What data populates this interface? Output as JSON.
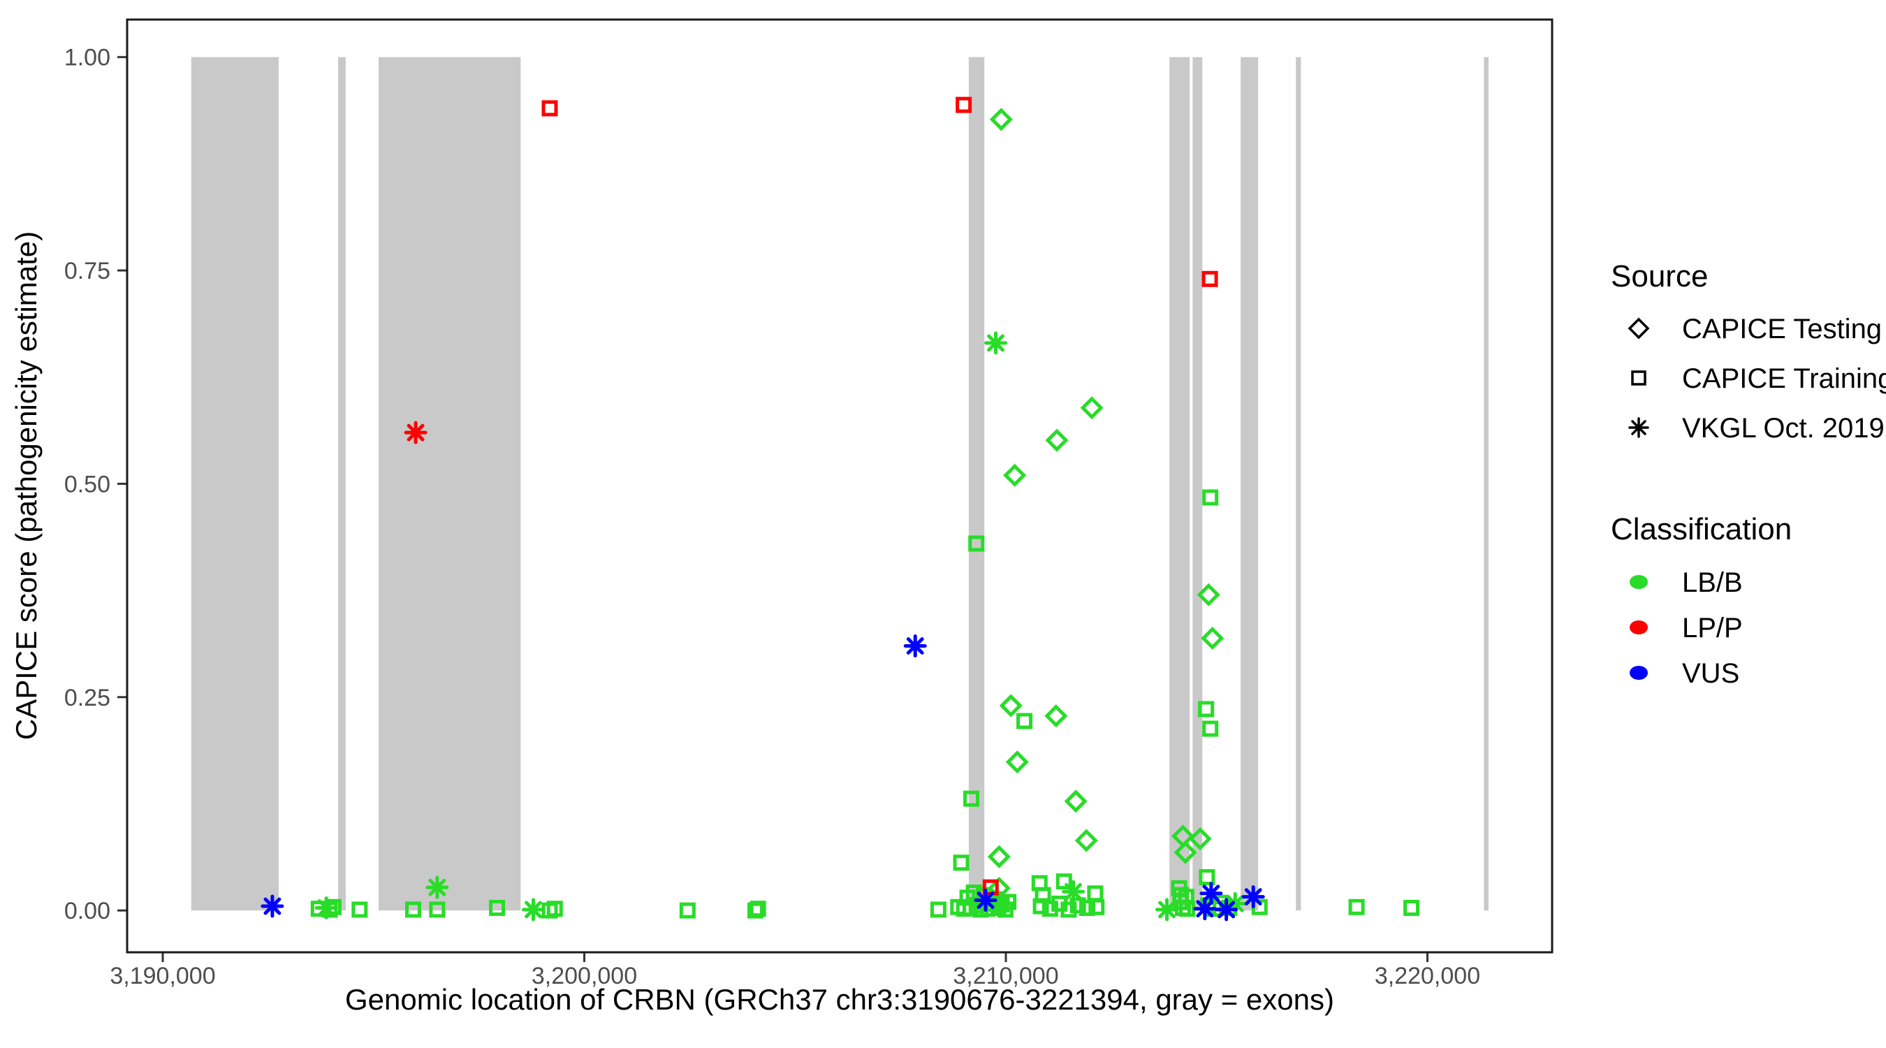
{
  "figure": {
    "x_axis_title": "Genomic location of CRBN (GRCh37 chr3:3190676-3221394, gray = exons)",
    "y_axis_title": "CAPICE score (pathogenicity estimate)"
  },
  "legend": {
    "source": {
      "title": "Source",
      "items": [
        {
          "label": "CAPICE Testing",
          "symbol": "diamond-icon"
        },
        {
          "label": "CAPICE Training",
          "symbol": "square-icon"
        },
        {
          "label": "VKGL Oct. 2019",
          "symbol": "asterisk-icon"
        }
      ]
    },
    "classification": {
      "title": "Classification",
      "items": [
        {
          "label": "LB/B",
          "color": "#28DC28"
        },
        {
          "label": "LP/P",
          "color": "#FF0000"
        },
        {
          "label": "VUS",
          "color": "#0000FF"
        }
      ]
    }
  },
  "chart_data": {
    "type": "scatter",
    "title": "",
    "xlabel": "Genomic location of CRBN (GRCh37 chr3:3190676-3221394, gray = exons)",
    "ylabel": "CAPICE score (pathogenicity estimate)",
    "xlim": [
      3189155,
      3222958
    ],
    "ylim": [
      -0.049,
      1.044
    ],
    "grid": false,
    "legend_position": "right",
    "x_ticks": [
      {
        "value": 3190000,
        "label": "3,190,000"
      },
      {
        "value": 3200000,
        "label": "3,200,000"
      },
      {
        "value": 3210000,
        "label": "3,210,000"
      },
      {
        "value": 3220000,
        "label": "3,220,000"
      }
    ],
    "y_ticks": [
      {
        "value": 0.0,
        "label": "0.00"
      },
      {
        "value": 0.25,
        "label": "0.25"
      },
      {
        "value": 0.5,
        "label": "0.50"
      },
      {
        "value": 0.75,
        "label": "0.75"
      },
      {
        "value": 1.0,
        "label": "1.00"
      }
    ],
    "exon_color": "#C9C9C9",
    "exons": [
      [
        3190676,
        3192750
      ],
      [
        3194160,
        3194340
      ],
      [
        3195120,
        3198490
      ],
      [
        3209120,
        3209490
      ],
      [
        3213880,
        3214360
      ],
      [
        3214430,
        3214660
      ],
      [
        3215570,
        3215985
      ],
      [
        3216880,
        3217000
      ],
      [
        3221340,
        3221450
      ]
    ],
    "series": [
      {
        "name": "CAPICE Training / LB/B",
        "source": "CAPICE Training",
        "classification": "LB/B",
        "shape": "square",
        "color": "#28DC28",
        "points": [
          [
            3214850,
            0.484
          ],
          [
            3209300,
            0.43
          ],
          [
            3214750,
            0.236
          ],
          [
            3210440,
            0.222
          ],
          [
            3214850,
            0.213
          ],
          [
            3209180,
            0.131
          ],
          [
            3208940,
            0.056
          ],
          [
            3214770,
            0.039
          ],
          [
            3211380,
            0.034
          ],
          [
            3210800,
            0.032
          ],
          [
            3212120,
            0.02
          ],
          [
            3210880,
            0.018
          ],
          [
            3193700,
            0.002
          ],
          [
            3193960,
            0.001
          ],
          [
            3194050,
            0.004
          ],
          [
            3194670,
            0.001
          ],
          [
            3195940,
            0.001
          ],
          [
            3196510,
            0.001
          ],
          [
            3197930,
            0.003
          ],
          [
            3199180,
            0.0
          ],
          [
            3199300,
            0.002
          ],
          [
            3202450,
            0.0
          ],
          [
            3204060,
            0.0
          ],
          [
            3204120,
            0.002
          ],
          [
            3208400,
            0.001
          ],
          [
            3208870,
            0.004
          ],
          [
            3209010,
            0.002
          ],
          [
            3209090,
            0.015
          ],
          [
            3209160,
            0.003
          ],
          [
            3209240,
            0.021
          ],
          [
            3209310,
            0.006
          ],
          [
            3209400,
            0.001
          ],
          [
            3209480,
            0.018
          ],
          [
            3209560,
            0.002
          ],
          [
            3209640,
            0.008
          ],
          [
            3209730,
            0.013
          ],
          [
            3209820,
            0.003
          ],
          [
            3209900,
            0.007
          ],
          [
            3209990,
            0.001
          ],
          [
            3210060,
            0.01
          ],
          [
            3210830,
            0.005
          ],
          [
            3211050,
            0.002
          ],
          [
            3211270,
            0.008
          ],
          [
            3211490,
            0.001
          ],
          [
            3211710,
            0.006
          ],
          [
            3211930,
            0.003
          ],
          [
            3212150,
            0.004
          ],
          [
            3214110,
            0.026
          ],
          [
            3214140,
            0.01
          ],
          [
            3214150,
            0.018
          ],
          [
            3214200,
            0.003
          ],
          [
            3214280,
            0.016
          ],
          [
            3214300,
            0.002
          ],
          [
            3214800,
            0.006
          ],
          [
            3214950,
            0.002
          ],
          [
            3215100,
            0.009
          ],
          [
            3215300,
            0.003
          ],
          [
            3216020,
            0.004
          ],
          [
            3218320,
            0.004
          ],
          [
            3219620,
            0.003
          ]
        ]
      },
      {
        "name": "CAPICE Testing / LB/B",
        "source": "CAPICE Testing",
        "classification": "LB/B",
        "shape": "diamond",
        "color": "#28DC28",
        "points": [
          [
            3209890,
            0.927
          ],
          [
            3212040,
            0.589
          ],
          [
            3211210,
            0.551
          ],
          [
            3210210,
            0.51
          ],
          [
            3214810,
            0.37
          ],
          [
            3214900,
            0.319
          ],
          [
            3210120,
            0.24
          ],
          [
            3211190,
            0.228
          ],
          [
            3210270,
            0.174
          ],
          [
            3211660,
            0.128
          ],
          [
            3214200,
            0.087
          ],
          [
            3214610,
            0.084
          ],
          [
            3211910,
            0.082
          ],
          [
            3214260,
            0.068
          ],
          [
            3209840,
            0.063
          ],
          [
            3209840,
            0.026
          ]
        ]
      },
      {
        "name": "VKGL Oct. 2019 / LB/B",
        "source": "VKGL Oct. 2019",
        "classification": "LB/B",
        "shape": "asterisk",
        "color": "#28DC28",
        "points": [
          [
            3209760,
            0.665
          ],
          [
            3196510,
            0.027
          ],
          [
            3211600,
            0.022
          ],
          [
            3215440,
            0.008
          ],
          [
            3193880,
            0.003
          ],
          [
            3198790,
            0.001
          ],
          [
            3213820,
            0.001
          ]
        ]
      },
      {
        "name": "CAPICE Training / LP/P",
        "source": "CAPICE Training",
        "classification": "LP/P",
        "shape": "square",
        "color": "#FF0000",
        "points": [
          [
            3199180,
            0.94
          ],
          [
            3209000,
            0.944
          ],
          [
            3214840,
            0.74
          ],
          [
            3209640,
            0.027
          ]
        ]
      },
      {
        "name": "VKGL Oct. 2019 / LP/P",
        "source": "VKGL Oct. 2019",
        "classification": "LP/P",
        "shape": "asterisk",
        "color": "#FF0000",
        "points": [
          [
            3196000,
            0.56
          ]
        ]
      },
      {
        "name": "VKGL Oct. 2019 / VUS",
        "source": "VKGL Oct. 2019",
        "classification": "VUS",
        "shape": "asterisk",
        "color": "#0000FF",
        "points": [
          [
            3207850,
            0.31
          ],
          [
            3214870,
            0.02
          ],
          [
            3215870,
            0.016
          ],
          [
            3209520,
            0.012
          ],
          [
            3192600,
            0.005
          ],
          [
            3214720,
            0.002
          ],
          [
            3215230,
            0.001
          ]
        ]
      }
    ]
  }
}
